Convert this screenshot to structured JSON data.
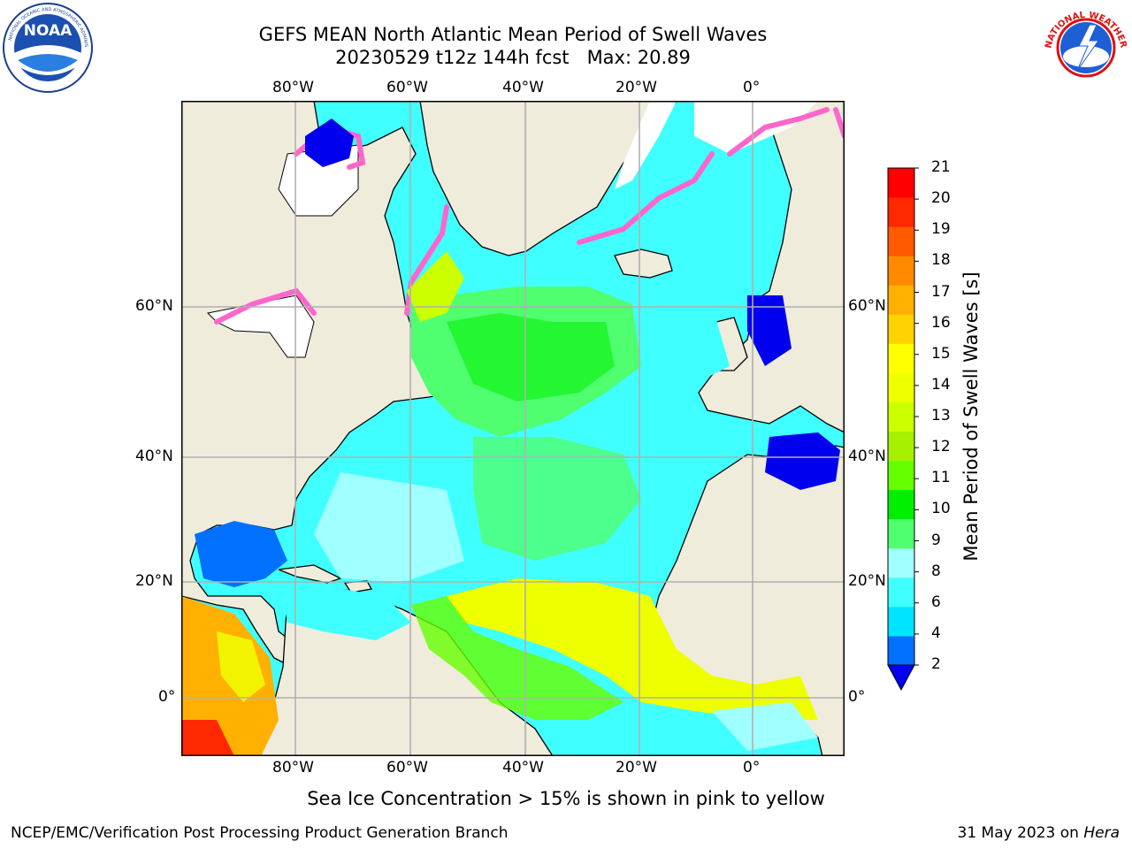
{
  "header": {
    "title_line1": "GEFS MEAN North Atlantic Mean Period of Swell Waves",
    "title_line2": "20230529 t12z 144h fcst   Max: 20.89"
  },
  "logos": {
    "left": {
      "icon": "noaa-logo",
      "text": "NOAA",
      "ring_text": "NATIONAL OCEANIC AND ATMOSPHERIC ADMINISTRATION · U.S. DEPARTMENT OF COMMERCE"
    },
    "right": {
      "icon": "nws-logo",
      "ring_text": "NATIONAL WEATHER SERVICE"
    }
  },
  "map": {
    "lon_labels": [
      "80°W",
      "60°W",
      "40°W",
      "20°W",
      "0°"
    ],
    "lat_labels": [
      "60°N",
      "40°N",
      "20°N",
      "0°"
    ],
    "colors": {
      "land": "#efecdc",
      "grid": "#b0b0b0",
      "ice_white": "#ffffff"
    }
  },
  "colorbar": {
    "label": "Mean Period of Swell Waves [s]",
    "ticks": [
      "21",
      "20",
      "19",
      "18",
      "17",
      "16",
      "15",
      "14",
      "13",
      "12",
      "11",
      "10",
      "9",
      "8",
      "6",
      "4",
      "2"
    ],
    "colors": [
      "#0000ee",
      "#0070ff",
      "#00e5ff",
      "#40ffff",
      "#a0ffff",
      "#50ff70",
      "#00ee00",
      "#66ff00",
      "#a6f000",
      "#ccff00",
      "#eeff00",
      "#ffff00",
      "#ffd200",
      "#ffb000",
      "#ff8a00",
      "#ff5a00",
      "#ff2800",
      "#ff0000"
    ]
  },
  "footer": {
    "note": "Sea Ice Concentration > 15% is shown in pink to yellow",
    "left": "NCEP/EMC/Verification Post Processing Product Generation Branch",
    "right_prefix": "31 May 2023 on ",
    "right_italic": "Hera"
  }
}
